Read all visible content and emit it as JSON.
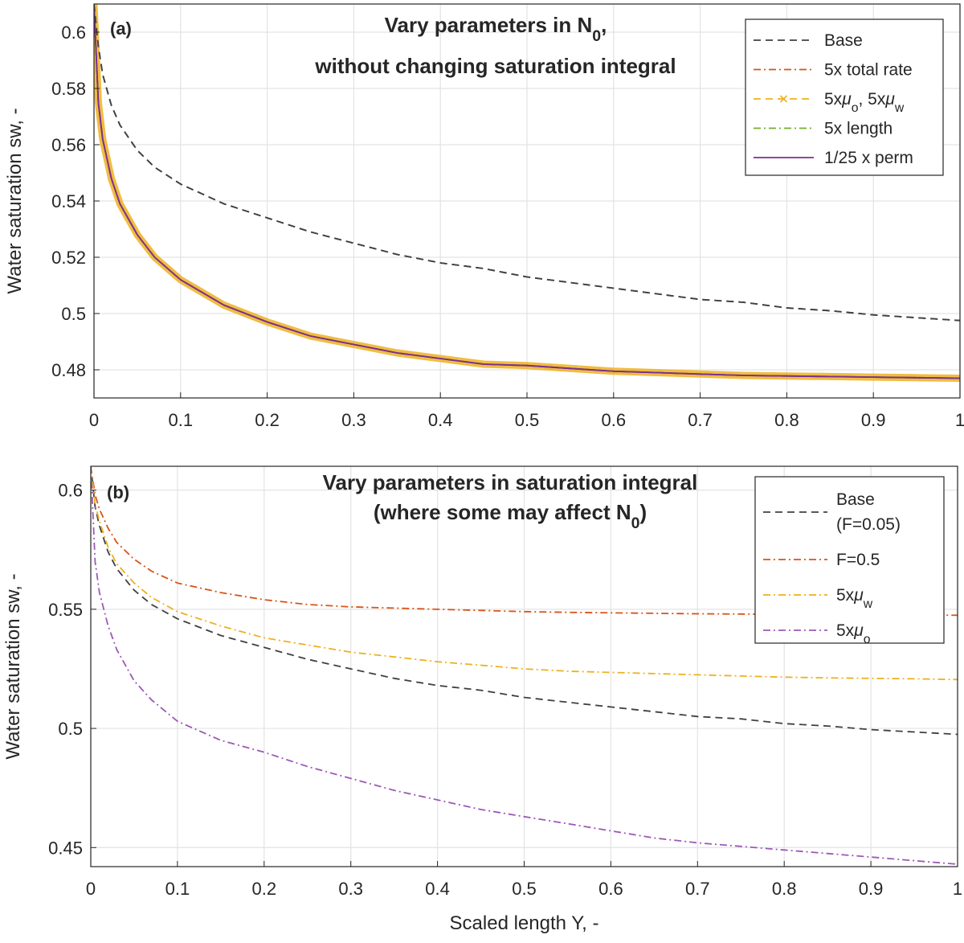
{
  "chart_data": [
    {
      "type": "line",
      "panel_label": "(a)",
      "title_lines": [
        "Vary parameters in N",
        "without changing saturation integral"
      ],
      "title_subscript": "0",
      "title_suffix": ",",
      "xlabel": "",
      "ylabel": "Water saturation sw, -",
      "xlim": [
        0,
        1
      ],
      "ylim": [
        0.47,
        0.61
      ],
      "xticks": [
        "0",
        "0.1",
        "0.2",
        "0.3",
        "0.4",
        "0.5",
        "0.6",
        "0.7",
        "0.8",
        "0.9",
        "1"
      ],
      "yticks": [
        "0.48",
        "0.5",
        "0.52",
        "0.54",
        "0.56",
        "0.58",
        "0.6"
      ],
      "ytick_values": [
        0.48,
        0.5,
        0.52,
        0.54,
        0.56,
        0.58,
        0.6
      ],
      "grid": true,
      "legend_position": "top-right",
      "x": [
        0.0,
        0.005,
        0.01,
        0.02,
        0.03,
        0.05,
        0.07,
        0.1,
        0.15,
        0.2,
        0.25,
        0.3,
        0.35,
        0.4,
        0.45,
        0.5,
        0.55,
        0.6,
        0.65,
        0.7,
        0.75,
        0.8,
        0.85,
        0.9,
        0.95,
        1.0
      ],
      "series": [
        {
          "name": "Base",
          "color": "#404040",
          "dash": "dashed",
          "values": [
            0.61,
            0.595,
            0.585,
            0.574,
            0.567,
            0.558,
            0.552,
            0.546,
            0.539,
            0.534,
            0.529,
            0.525,
            0.521,
            0.518,
            0.516,
            0.513,
            0.511,
            0.509,
            0.507,
            0.505,
            0.504,
            0.502,
            0.501,
            0.4995,
            0.4985,
            0.4975
          ]
        },
        {
          "name": "5x total rate",
          "color": "#d95319",
          "dash": "dashdot",
          "values": [
            0.61,
            0.575,
            0.562,
            0.548,
            0.539,
            0.528,
            0.52,
            0.512,
            0.503,
            0.497,
            0.492,
            0.489,
            0.486,
            0.484,
            0.482,
            0.4815,
            0.4805,
            0.4795,
            0.479,
            0.4785,
            0.478,
            0.4778,
            0.4776,
            0.4774,
            0.4772,
            0.477
          ]
        },
        {
          "name_parts": [
            "5x",
            "μ",
            "o",
            ", 5x",
            "μ",
            "w"
          ],
          "color": "#edb120",
          "dash": "dashed-x",
          "values": [
            0.61,
            0.575,
            0.562,
            0.548,
            0.539,
            0.528,
            0.52,
            0.512,
            0.503,
            0.497,
            0.492,
            0.489,
            0.486,
            0.484,
            0.482,
            0.4815,
            0.4805,
            0.4795,
            0.479,
            0.4785,
            0.478,
            0.4778,
            0.4776,
            0.4774,
            0.4772,
            0.477
          ]
        },
        {
          "name": "5x length",
          "color": "#77ac30",
          "dash": "dashdot",
          "values": [
            0.61,
            0.575,
            0.562,
            0.548,
            0.539,
            0.528,
            0.52,
            0.512,
            0.503,
            0.497,
            0.492,
            0.489,
            0.486,
            0.484,
            0.482,
            0.4815,
            0.4805,
            0.4795,
            0.479,
            0.4785,
            0.478,
            0.4778,
            0.4776,
            0.4774,
            0.4772,
            0.477
          ]
        },
        {
          "name": "1/25 x perm",
          "color": "#7e2f8e",
          "dash": "solid",
          "values": [
            0.61,
            0.575,
            0.562,
            0.548,
            0.539,
            0.528,
            0.52,
            0.512,
            0.503,
            0.497,
            0.492,
            0.489,
            0.486,
            0.484,
            0.482,
            0.4815,
            0.4805,
            0.4795,
            0.479,
            0.4785,
            0.478,
            0.4778,
            0.4776,
            0.4774,
            0.4772,
            0.477
          ]
        }
      ]
    },
    {
      "type": "line",
      "panel_label": "(b)",
      "title_lines": [
        "Vary parameters in saturation integral",
        "(where some may affect N"
      ],
      "title_subscript": "0",
      "title_suffix": ")",
      "xlabel": "Scaled length Y, -",
      "ylabel": "Water saturation sw, -",
      "xlim": [
        0,
        1
      ],
      "ylim": [
        0.442,
        0.61
      ],
      "xticks": [
        "0",
        "0.1",
        "0.2",
        "0.3",
        "0.4",
        "0.5",
        "0.6",
        "0.7",
        "0.8",
        "0.9",
        "1"
      ],
      "yticks": [
        "0.45",
        "0.5",
        "0.55",
        "0.6"
      ],
      "ytick_values": [
        0.45,
        0.5,
        0.55,
        0.6
      ],
      "grid": true,
      "legend_position": "top-right",
      "x": [
        0.0,
        0.005,
        0.01,
        0.02,
        0.03,
        0.05,
        0.07,
        0.1,
        0.15,
        0.2,
        0.25,
        0.3,
        0.35,
        0.4,
        0.45,
        0.5,
        0.55,
        0.6,
        0.65,
        0.7,
        0.75,
        0.8,
        0.85,
        0.9,
        0.95,
        1.0
      ],
      "series": [
        {
          "name_lines": [
            "Base",
            "(F=0.05)"
          ],
          "color": "#404040",
          "dash": "dashed",
          "values": [
            0.61,
            0.593,
            0.585,
            0.574,
            0.567,
            0.558,
            0.552,
            0.546,
            0.539,
            0.534,
            0.529,
            0.525,
            0.521,
            0.518,
            0.516,
            0.513,
            0.511,
            0.509,
            0.507,
            0.505,
            0.504,
            0.502,
            0.501,
            0.4995,
            0.4985,
            0.4975
          ]
        },
        {
          "name": "F=0.5",
          "color": "#d95319",
          "dash": "dashdot",
          "values": [
            0.61,
            0.598,
            0.592,
            0.584,
            0.578,
            0.571,
            0.566,
            0.561,
            0.557,
            0.554,
            0.552,
            0.551,
            0.5505,
            0.55,
            0.5495,
            0.549,
            0.5487,
            0.5485,
            0.5483,
            0.5481,
            0.548,
            0.5479,
            0.5478,
            0.5477,
            0.5476,
            0.5475
          ]
        },
        {
          "name_parts": [
            "5x",
            "μ",
            "w"
          ],
          "color": "#edb120",
          "dash": "dashdot",
          "values": [
            0.61,
            0.594,
            0.587,
            0.576,
            0.569,
            0.561,
            0.555,
            0.549,
            0.543,
            0.538,
            0.535,
            0.532,
            0.53,
            0.528,
            0.5265,
            0.525,
            0.524,
            0.5235,
            0.523,
            0.5225,
            0.522,
            0.5215,
            0.5212,
            0.521,
            0.5208,
            0.5205
          ]
        },
        {
          "name_parts": [
            "5x",
            "μ",
            "o"
          ],
          "color": "#9b59b6",
          "dash": "dashdot",
          "values": [
            0.61,
            0.57,
            0.557,
            0.543,
            0.533,
            0.52,
            0.512,
            0.503,
            0.495,
            0.49,
            0.484,
            0.479,
            0.474,
            0.47,
            0.466,
            0.463,
            0.46,
            0.457,
            0.454,
            0.452,
            0.4505,
            0.449,
            0.4475,
            0.446,
            0.4445,
            0.443
          ]
        }
      ]
    }
  ]
}
